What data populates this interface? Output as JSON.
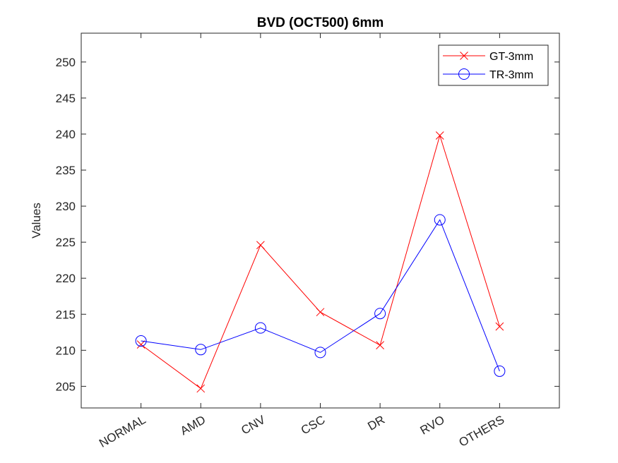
{
  "chart_data": {
    "type": "line",
    "title": "BVD (OCT500) 6mm",
    "xlabel": "",
    "ylabel": "Values",
    "categories": [
      "NORMAL",
      "AMD",
      "CNV",
      "CSC",
      "DR",
      "RVO",
      "OTHERS"
    ],
    "ylim": [
      202,
      254
    ],
    "yticks": [
      205,
      210,
      215,
      220,
      225,
      230,
      235,
      240,
      245,
      250
    ],
    "grid": false,
    "legend_position": "top-right",
    "series": [
      {
        "name": "GT-3mm",
        "color": "#ff0000",
        "marker": "x",
        "values": [
          210.8,
          204.7,
          224.6,
          215.3,
          210.7,
          239.8,
          213.3
        ]
      },
      {
        "name": "TR-3mm",
        "color": "#0000ff",
        "marker": "circle",
        "values": [
          211.3,
          210.1,
          213.1,
          209.7,
          215.1,
          228.1,
          207.1
        ]
      }
    ]
  }
}
